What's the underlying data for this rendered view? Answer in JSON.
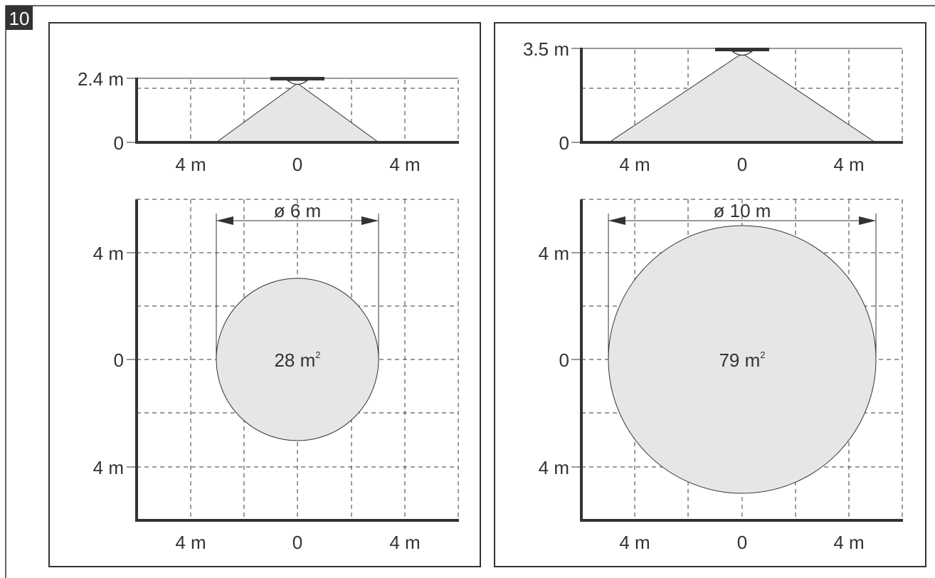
{
  "figure": {
    "number": "10",
    "colors": {
      "frame": "#333333",
      "cone_fill": "#e6e6e6",
      "badge_bg": "#333333",
      "badge_text": "#ffffff"
    }
  },
  "panels": [
    {
      "id": "left",
      "side_view": {
        "height_label": "2.4 m",
        "zero_label": "0",
        "x_ticks": [
          "4 m",
          "0",
          "4 m"
        ]
      },
      "top_view": {
        "y_ticks": [
          "4 m",
          "0",
          "4 m"
        ],
        "x_ticks": [
          "4 m",
          "0",
          "4 m"
        ],
        "diameter_label": "ø 6 m",
        "area_label": "28 m",
        "area_sup": "2"
      }
    },
    {
      "id": "right",
      "side_view": {
        "height_label": "3.5 m",
        "zero_label": "0",
        "x_ticks": [
          "4 m",
          "0",
          "4 m"
        ]
      },
      "top_view": {
        "y_ticks": [
          "4 m",
          "0",
          "4 m"
        ],
        "x_ticks": [
          "4 m",
          "0",
          "4 m"
        ],
        "diameter_label": "ø 10 m",
        "area_label": "79 m",
        "area_sup": "2"
      }
    }
  ]
}
